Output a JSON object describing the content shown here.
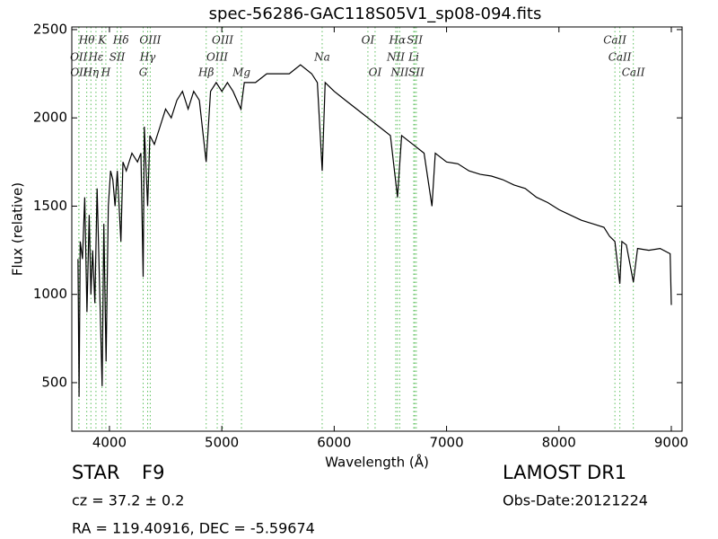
{
  "chart_data": {
    "type": "line",
    "title": "spec-56286-GAC118S05V1_sp08-094.fits",
    "x_label": "Wavelength (Å)",
    "y_label": "Flux (relative)",
    "xlim": [
      3665,
      9096
    ],
    "ylim": [
      225,
      2515
    ],
    "xticks": [
      4000,
      5000,
      6000,
      7000,
      8000,
      9000
    ],
    "yticks": [
      500,
      1000,
      1500,
      2000,
      2500
    ],
    "series": [
      {
        "color": "#000000",
        "x": [
          3720,
          3730,
          3740,
          3760,
          3780,
          3800,
          3820,
          3835,
          3850,
          3870,
          3890,
          3910,
          3935,
          3950,
          3970,
          3990,
          4010,
          4030,
          4050,
          4070,
          4090,
          4102,
          4120,
          4150,
          4200,
          4250,
          4280,
          4300,
          4310,
          4340,
          4360,
          4400,
          4450,
          4500,
          4550,
          4600,
          4650,
          4700,
          4750,
          4800,
          4861,
          4900,
          4950,
          5000,
          5050,
          5100,
          5170,
          5200,
          5300,
          5400,
          5500,
          5600,
          5700,
          5800,
          5850,
          5893,
          5920,
          6000,
          6100,
          6200,
          6300,
          6400,
          6500,
          6563,
          6600,
          6700,
          6800,
          6870,
          6900,
          7000,
          7100,
          7200,
          7300,
          7400,
          7500,
          7600,
          7700,
          7800,
          7900,
          8000,
          8100,
          8200,
          8300,
          8400,
          8450,
          8498,
          8542,
          8560,
          8600,
          8662,
          8700,
          8800,
          8900,
          8990,
          9000
        ],
        "values": [
          1200,
          420,
          1300,
          1200,
          1550,
          900,
          1450,
          1000,
          1250,
          950,
          1600,
          1100,
          480,
          1400,
          620,
          1500,
          1700,
          1650,
          1500,
          1700,
          1450,
          1300,
          1750,
          1700,
          1800,
          1750,
          1800,
          1100,
          1950,
          1500,
          1900,
          1850,
          1950,
          2050,
          2000,
          2100,
          2150,
          2050,
          2150,
          2100,
          1750,
          2150,
          2200,
          2150,
          2200,
          2150,
          2050,
          2200,
          2200,
          2250,
          2250,
          2250,
          2300,
          2250,
          2200,
          1700,
          2200,
          2150,
          2100,
          2050,
          2000,
          1950,
          1900,
          1550,
          1900,
          1850,
          1800,
          1500,
          1800,
          1750,
          1740,
          1700,
          1680,
          1670,
          1650,
          1620,
          1600,
          1550,
          1520,
          1480,
          1450,
          1420,
          1400,
          1380,
          1330,
          1300,
          1060,
          1300,
          1280,
          1070,
          1260,
          1250,
          1260,
          1230,
          940
        ]
      }
    ],
    "spectral_lines": [
      [
        {
          "name": "Hθ",
          "x": 3798
        },
        {
          "name": "K",
          "x": 3934
        },
        {
          "name": "Hδ",
          "x": 4102
        },
        {
          "name": "OIII",
          "x": 4363
        },
        {
          "name": "OIII",
          "x": 5007
        },
        {
          "name": "OI",
          "x": 6300
        },
        {
          "name": "Hα",
          "x": 6563
        },
        {
          "name": "SII",
          "x": 6717
        },
        {
          "name": "CaII",
          "x": 8498
        }
      ],
      [
        {
          "name": "OII",
          "x": 3727
        },
        {
          "name": "Hε",
          "x": 3880
        },
        {
          "name": "SII",
          "x": 4069
        },
        {
          "name": "Hγ",
          "x": 4340
        },
        {
          "name": "OIII",
          "x": 4959
        },
        {
          "name": "Na",
          "x": 5893
        },
        {
          "name": "NII",
          "x": 6548
        },
        {
          "name": "Li",
          "x": 6708
        },
        {
          "name": "CaII",
          "x": 8542
        }
      ],
      [
        {
          "name": "OII",
          "x": 3729
        },
        {
          "name": "Hη",
          "x": 3835
        },
        {
          "name": "H",
          "x": 3968
        },
        {
          "name": "G",
          "x": 4300
        },
        {
          "name": "Hβ",
          "x": 4861
        },
        {
          "name": "Mg",
          "x": 5175
        },
        {
          "name": "OI",
          "x": 6364
        },
        {
          "name": "NII",
          "x": 6583
        },
        {
          "name": "SII",
          "x": 6731
        },
        {
          "name": "CaII",
          "x": 8662
        }
      ]
    ],
    "object_class": "STAR",
    "subclass": "F9",
    "redshift": "cz = 37.2 ± 0.2",
    "coordinates": "RA = 119.40916, DEC = -5.59674",
    "survey": "LAMOST DR1",
    "obs_date": "Obs-Date:20121224"
  }
}
